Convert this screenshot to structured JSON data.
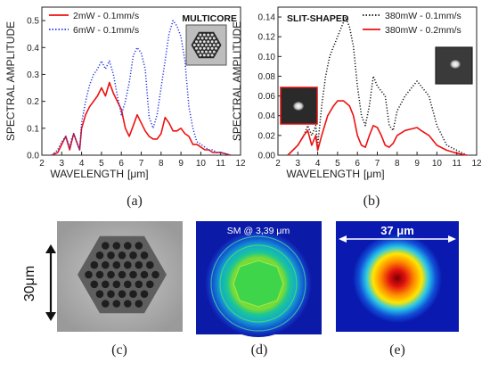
{
  "chart_data": [
    {
      "type": "line",
      "title": "MULTICORE",
      "xlabel": "WAVELENGTH",
      "xlabel_unit": "[μm]",
      "ylabel": "SPECTRAL AMPLITUDE",
      "xlim": [
        2,
        12
      ],
      "ylim": [
        0,
        0.55
      ],
      "xticks": [
        "2",
        "3",
        "4",
        "5",
        "6",
        "7",
        "8",
        "9",
        "10",
        "11",
        "12"
      ],
      "yticks": [
        "0.0",
        "0.1",
        "0.2",
        "0.3",
        "0.4",
        "0.5"
      ],
      "grid": false,
      "legend": "top-left",
      "series": [
        {
          "name": "2mW - 0.1mm/s",
          "color": "#ee1111",
          "style": "solid",
          "x": [
            2.5,
            2.8,
            3.0,
            3.2,
            3.4,
            3.5,
            3.6,
            3.8,
            3.9,
            4.0,
            4.2,
            4.4,
            4.6,
            4.8,
            5.0,
            5.2,
            5.4,
            5.6,
            5.8,
            6.0,
            6.2,
            6.4,
            6.6,
            6.8,
            7.0,
            7.2,
            7.4,
            7.6,
            7.8,
            8.0,
            8.2,
            8.4,
            8.6,
            8.8,
            9.0,
            9.2,
            9.4,
            9.6,
            9.8,
            10.0,
            10.2,
            10.4,
            10.6,
            11.0,
            11.5
          ],
          "y": [
            0.0,
            0.01,
            0.04,
            0.07,
            0.02,
            0.05,
            0.08,
            0.04,
            0.02,
            0.1,
            0.15,
            0.18,
            0.2,
            0.22,
            0.25,
            0.22,
            0.27,
            0.23,
            0.2,
            0.17,
            0.1,
            0.07,
            0.11,
            0.15,
            0.12,
            0.09,
            0.07,
            0.06,
            0.06,
            0.08,
            0.14,
            0.12,
            0.09,
            0.09,
            0.1,
            0.08,
            0.07,
            0.04,
            0.04,
            0.03,
            0.02,
            0.02,
            0.01,
            0.01,
            0.0
          ]
        },
        {
          "name": "6mW - 0.1mm/s",
          "color": "#2233dd",
          "style": "dotted",
          "x": [
            2.5,
            2.8,
            3.0,
            3.2,
            3.4,
            3.5,
            3.6,
            3.8,
            3.9,
            4.0,
            4.2,
            4.4,
            4.6,
            4.8,
            5.0,
            5.2,
            5.4,
            5.6,
            5.8,
            6.0,
            6.2,
            6.4,
            6.6,
            6.8,
            7.0,
            7.2,
            7.4,
            7.6,
            7.8,
            8.0,
            8.2,
            8.4,
            8.6,
            8.8,
            9.0,
            9.2,
            9.4,
            9.6,
            9.8,
            10.0,
            10.2,
            10.4,
            10.6,
            10.8,
            11.0,
            11.5
          ],
          "y": [
            0.0,
            0.02,
            0.05,
            0.07,
            0.03,
            0.06,
            0.08,
            0.04,
            0.02,
            0.12,
            0.2,
            0.26,
            0.3,
            0.32,
            0.35,
            0.32,
            0.35,
            0.3,
            0.22,
            0.15,
            0.2,
            0.27,
            0.37,
            0.4,
            0.38,
            0.32,
            0.14,
            0.1,
            0.15,
            0.25,
            0.35,
            0.45,
            0.5,
            0.48,
            0.44,
            0.35,
            0.18,
            0.1,
            0.05,
            0.04,
            0.03,
            0.02,
            0.02,
            0.01,
            0.01,
            0.0
          ]
        }
      ]
    },
    {
      "type": "line",
      "title": "SLIT-SHAPED",
      "xlabel": "WAVELENGTH",
      "xlabel_unit": "[μm]",
      "ylabel": "SPECTRAL AMPLITUDE",
      "xlim": [
        2,
        12
      ],
      "ylim": [
        0,
        0.15
      ],
      "xticks": [
        "2",
        "3",
        "4",
        "5",
        "6",
        "7",
        "8",
        "9",
        "10",
        "11",
        "12"
      ],
      "yticks": [
        "0.00",
        "0.02",
        "0.04",
        "0.06",
        "0.08",
        "0.10",
        "0.12",
        "0.14"
      ],
      "grid": false,
      "legend": "top-right",
      "series": [
        {
          "name": "380mW - 0.1mm/s",
          "color": "#111111",
          "style": "dotted",
          "x": [
            2.5,
            3.0,
            3.3,
            3.5,
            3.7,
            3.9,
            4.0,
            4.2,
            4.4,
            4.6,
            4.8,
            5.0,
            5.2,
            5.4,
            5.6,
            5.8,
            6.0,
            6.2,
            6.4,
            6.6,
            6.8,
            7.0,
            7.2,
            7.4,
            7.6,
            7.8,
            8.0,
            8.4,
            8.8,
            9.0,
            9.2,
            9.6,
            10.0,
            10.5,
            11.0,
            11.5
          ],
          "y": [
            0.0,
            0.01,
            0.02,
            0.03,
            0.02,
            0.03,
            0.01,
            0.05,
            0.08,
            0.1,
            0.11,
            0.12,
            0.13,
            0.14,
            0.13,
            0.11,
            0.07,
            0.04,
            0.03,
            0.05,
            0.08,
            0.07,
            0.065,
            0.06,
            0.03,
            0.025,
            0.045,
            0.06,
            0.07,
            0.075,
            0.07,
            0.06,
            0.03,
            0.01,
            0.005,
            0.0
          ]
        },
        {
          "name": "380mW - 0.2mm/s",
          "color": "#ee1111",
          "style": "solid",
          "x": [
            2.5,
            3.0,
            3.3,
            3.5,
            3.7,
            3.9,
            4.0,
            4.2,
            4.5,
            4.8,
            5.0,
            5.3,
            5.6,
            5.8,
            6.0,
            6.2,
            6.4,
            6.6,
            6.8,
            7.0,
            7.2,
            7.4,
            7.6,
            7.8,
            8.0,
            8.4,
            8.8,
            9.0,
            9.2,
            9.6,
            10.0,
            10.5,
            11.0,
            11.5
          ],
          "y": [
            0.0,
            0.01,
            0.02,
            0.025,
            0.01,
            0.02,
            0.005,
            0.02,
            0.04,
            0.05,
            0.055,
            0.055,
            0.05,
            0.04,
            0.02,
            0.01,
            0.008,
            0.02,
            0.03,
            0.028,
            0.02,
            0.01,
            0.008,
            0.012,
            0.02,
            0.025,
            0.027,
            0.028,
            0.025,
            0.02,
            0.01,
            0.005,
            0.002,
            0.0
          ]
        }
      ]
    }
  ],
  "captions": {
    "a": "(a)",
    "b": "(b)",
    "c": "(c)",
    "d": "(d)",
    "e": "(e)"
  },
  "panel_c": {
    "scale_label": "30μm"
  },
  "panel_d": {
    "label": "SM @ 3,39 μm"
  },
  "panel_e": {
    "label": "37 μm"
  }
}
